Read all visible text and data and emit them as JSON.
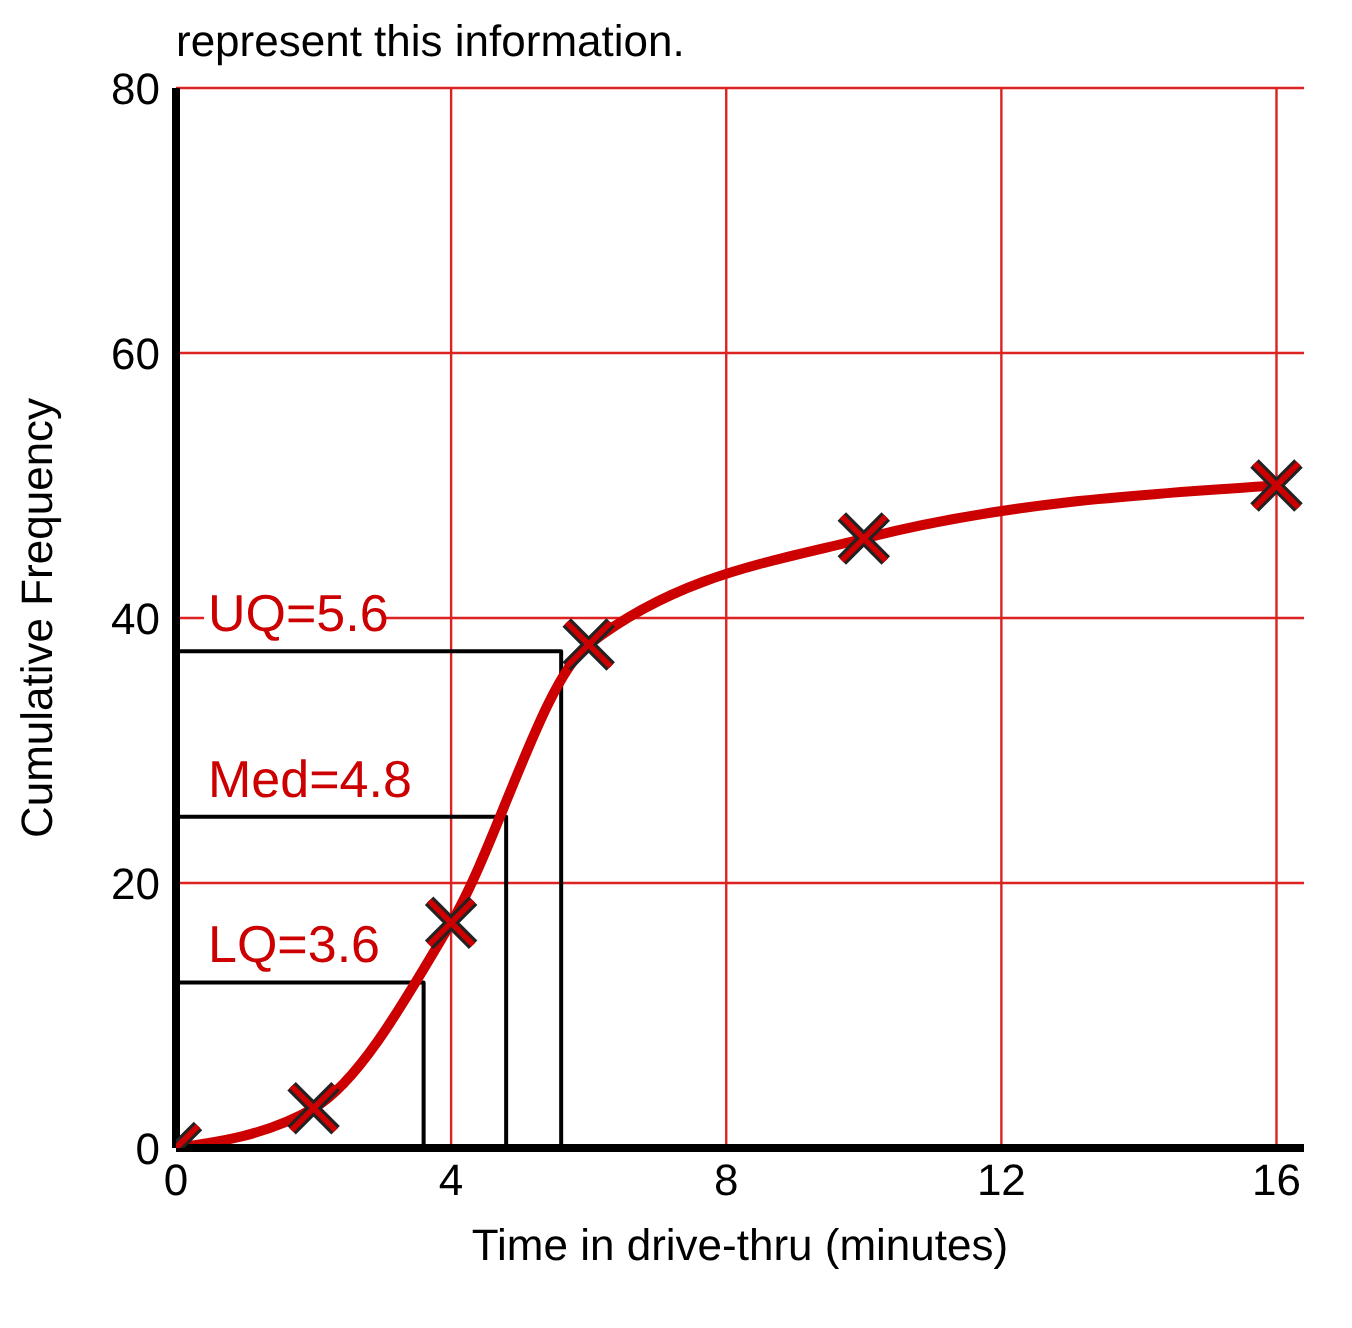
{
  "chart_data": {
    "type": "line",
    "title": "represent this information.",
    "xlabel": "Time in drive-thru (minutes)",
    "ylabel": "Cumulative Frequency",
    "xlim": [
      0,
      16.4
    ],
    "ylim": [
      0,
      80
    ],
    "xticks": [
      0,
      4,
      8,
      12,
      16
    ],
    "yticks": [
      0,
      20,
      40,
      60,
      80
    ],
    "grid": true,
    "series": [
      {
        "color": "#cc0000",
        "marker": "cross",
        "x": [
          0,
          2,
          4,
          6,
          10,
          16
        ],
        "values": [
          0,
          3,
          17,
          38,
          46,
          50
        ]
      },
      {
        "color": "#000000",
        "marker": "none",
        "x": [
          0,
          5.6,
          5.6
        ],
        "values": [
          37.5,
          37.5,
          0
        ]
      },
      {
        "color": "#000000",
        "marker": "none",
        "x": [
          0,
          4.8,
          4.8
        ],
        "values": [
          25,
          25,
          0
        ]
      },
      {
        "color": "#000000",
        "marker": "none",
        "x": [
          0,
          3.6,
          3.6
        ],
        "values": [
          12.5,
          12.5,
          0
        ]
      }
    ],
    "annotations": [
      {
        "text": "UQ=5.6",
        "y": 37.5
      },
      {
        "text": "Med=4.8",
        "y": 25
      },
      {
        "text": "LQ=3.6",
        "y": 12.5
      }
    ]
  }
}
